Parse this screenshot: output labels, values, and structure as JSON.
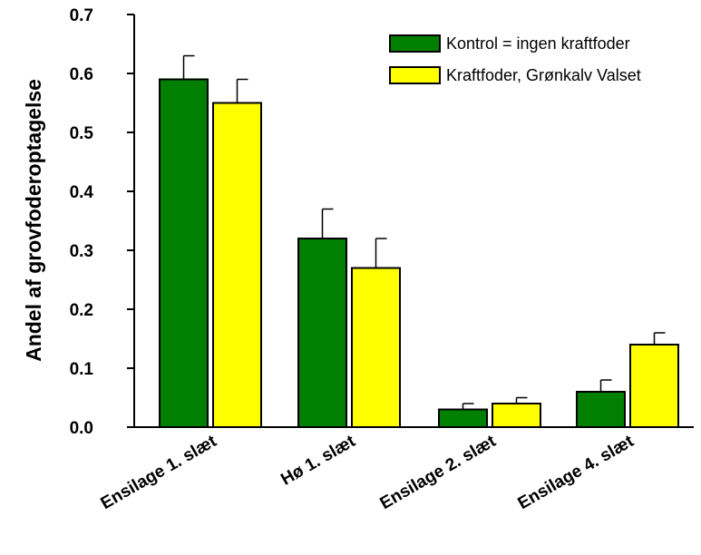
{
  "chart_data": {
    "type": "bar",
    "title": "",
    "xlabel": "",
    "ylabel": "Andel af grovfoderoptagelse",
    "ylim": [
      0,
      0.7
    ],
    "yticks": [
      "0.0",
      "0.1",
      "0.2",
      "0.3",
      "0.4",
      "0.5",
      "0.6",
      "0.7"
    ],
    "categories": [
      "Ensilage 1. slæt",
      "Hø 1. slæt",
      "Ensilage 2. slæt",
      "Ensilage 4. slæt"
    ],
    "series": [
      {
        "name": "Kontrol = ingen kraftfoder",
        "color": "#007f00",
        "values": [
          0.59,
          0.32,
          0.03,
          0.06
        ],
        "errors": [
          0.04,
          0.05,
          0.01,
          0.02
        ]
      },
      {
        "name": "Kraftfoder, Grønkalv Valset",
        "color": "#ffff00",
        "values": [
          0.55,
          0.27,
          0.04,
          0.14
        ],
        "errors": [
          0.04,
          0.05,
          0.01,
          0.02
        ]
      }
    ],
    "legend_position": "top-right",
    "grid": false
  }
}
